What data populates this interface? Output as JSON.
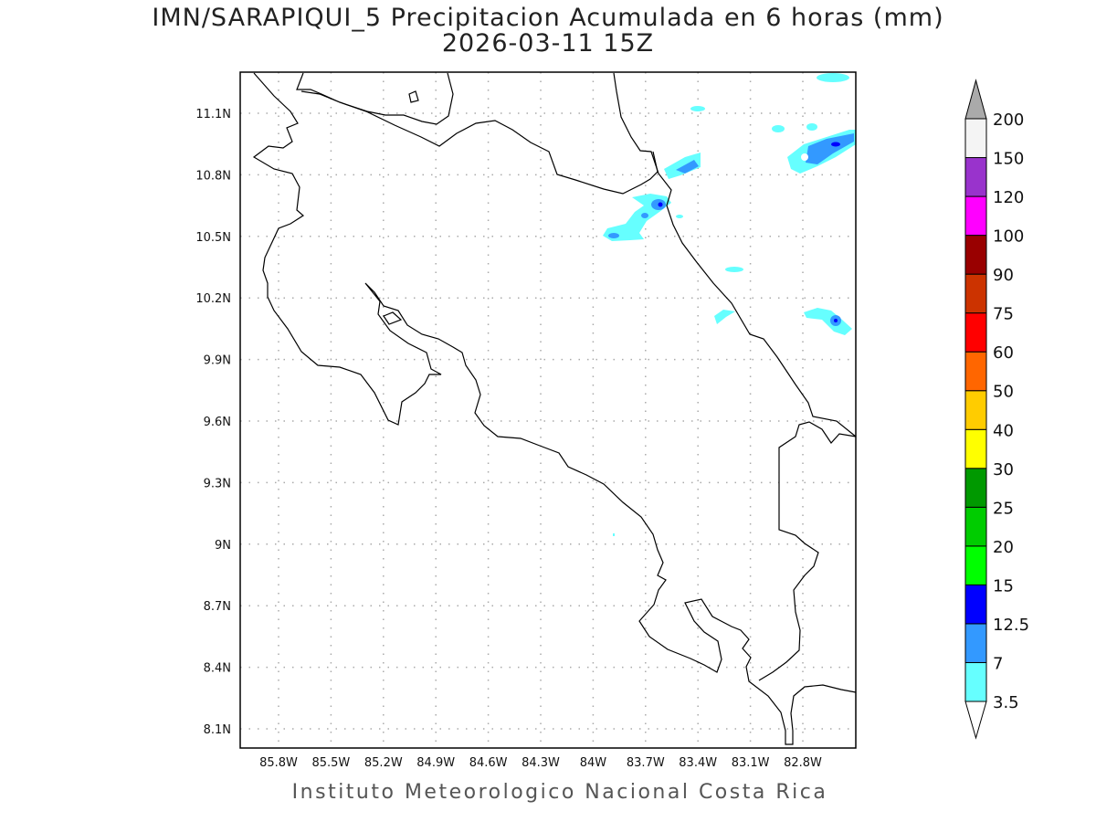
{
  "header": {
    "title": "IMN/SARAPIQUI_5 Precipitacion Acumulada en 6 horas (mm)",
    "subtitle": "2026-03-11 15Z"
  },
  "footer": "Instituto Meteorologico Nacional Costa Rica",
  "map": {
    "region": "Costa Rica",
    "variable": "6-hour accumulated precipitation (mm)",
    "lon_range": [
      "86.0W",
      "82.5W"
    ],
    "lat_range": [
      "8.0N",
      "11.3N"
    ],
    "grid": "dotted",
    "lon_ticks": [
      "85.8W",
      "85.5W",
      "85.2W",
      "84.9W",
      "84.6W",
      "84.3W",
      "84W",
      "83.7W",
      "83.4W",
      "83.1W",
      "82.8W"
    ],
    "lat_ticks": [
      "11.1N",
      "10.8N",
      "10.5N",
      "10.2N",
      "9.9N",
      "9.6N",
      "9.3N",
      "9N",
      "8.7N",
      "8.4N",
      "8.1N"
    ],
    "coastline_color": "#000000"
  },
  "colorbar": {
    "labels": [
      "3.5",
      "7",
      "12.5",
      "15",
      "20",
      "25",
      "30",
      "40",
      "50",
      "60",
      "75",
      "90",
      "100",
      "120",
      "150",
      "200"
    ],
    "colors": [
      "#66ffff",
      "#3399ff",
      "#0000ff",
      "#00ff00",
      "#00cc00",
      "#009900",
      "#ffff00",
      "#ffcc00",
      "#ff6600",
      "#ff0000",
      "#cc3300",
      "#990000",
      "#ff00ff",
      "#9933cc",
      "#f4f4f4"
    ],
    "below_color": "#ffffff",
    "above_color": "#aaaaaa"
  }
}
